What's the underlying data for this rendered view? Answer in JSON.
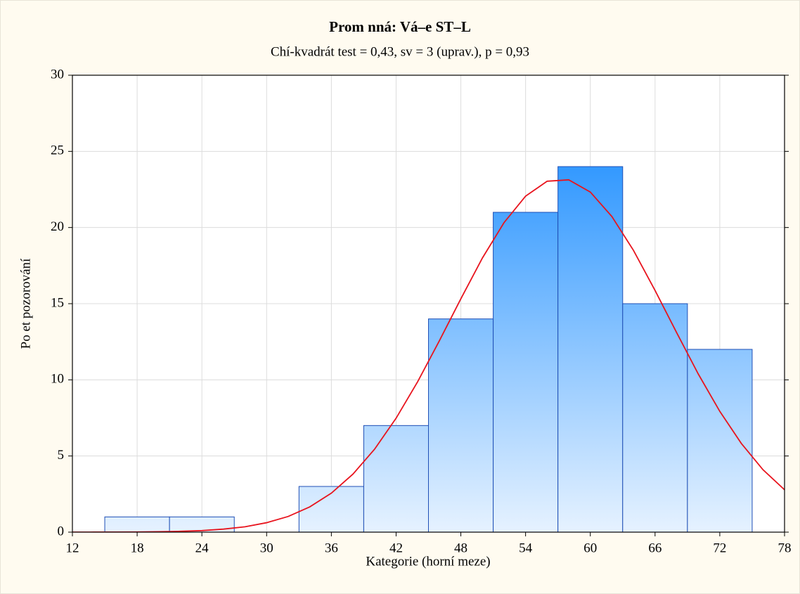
{
  "chart_data": {
    "type": "histogram",
    "title": "Prom nná: Vá–e   ST–L",
    "subtitle": "Chí-kvadrát test = 0,43, sv = 3 (uprav.), p = 0,93",
    "xlabel": "Kategorie (horní meze)",
    "ylabel": "Po et pozorování",
    "bins": [
      15,
      21,
      27,
      33,
      39,
      45,
      51,
      57,
      63,
      69,
      75
    ],
    "counts": [
      1,
      1,
      0,
      3,
      7,
      14,
      21,
      24,
      15,
      12
    ],
    "color": "#3399ff",
    "edge_color": "#1f4fb5",
    "xlim": [
      12,
      78
    ],
    "xticks": [
      12,
      18,
      24,
      30,
      36,
      42,
      48,
      54,
      60,
      66,
      72,
      78
    ],
    "ylim": [
      0,
      30
    ],
    "yticks": [
      0,
      5,
      10,
      15,
      20,
      25,
      30
    ],
    "grid": true,
    "curve": {
      "color": "#e8141e",
      "x": [
        12,
        14,
        16,
        18,
        20,
        22,
        24,
        26,
        28,
        30,
        32,
        34,
        36,
        38,
        40,
        42,
        44,
        46,
        48,
        50,
        52,
        54,
        56,
        58,
        60,
        62,
        64,
        66,
        68,
        70,
        72,
        74,
        76,
        78
      ],
      "values": [
        0.001,
        0.002,
        0.006,
        0.012,
        0.026,
        0.054,
        0.1,
        0.2,
        0.35,
        0.62,
        1.03,
        1.66,
        2.56,
        3.81,
        5.44,
        7.48,
        9.88,
        12.55,
        15.32,
        18.0,
        20.32,
        22.06,
        23.04,
        23.13,
        22.33,
        20.72,
        18.5,
        15.87,
        13.1,
        10.39,
        7.93,
        5.82,
        4.1,
        2.78
      ]
    }
  }
}
